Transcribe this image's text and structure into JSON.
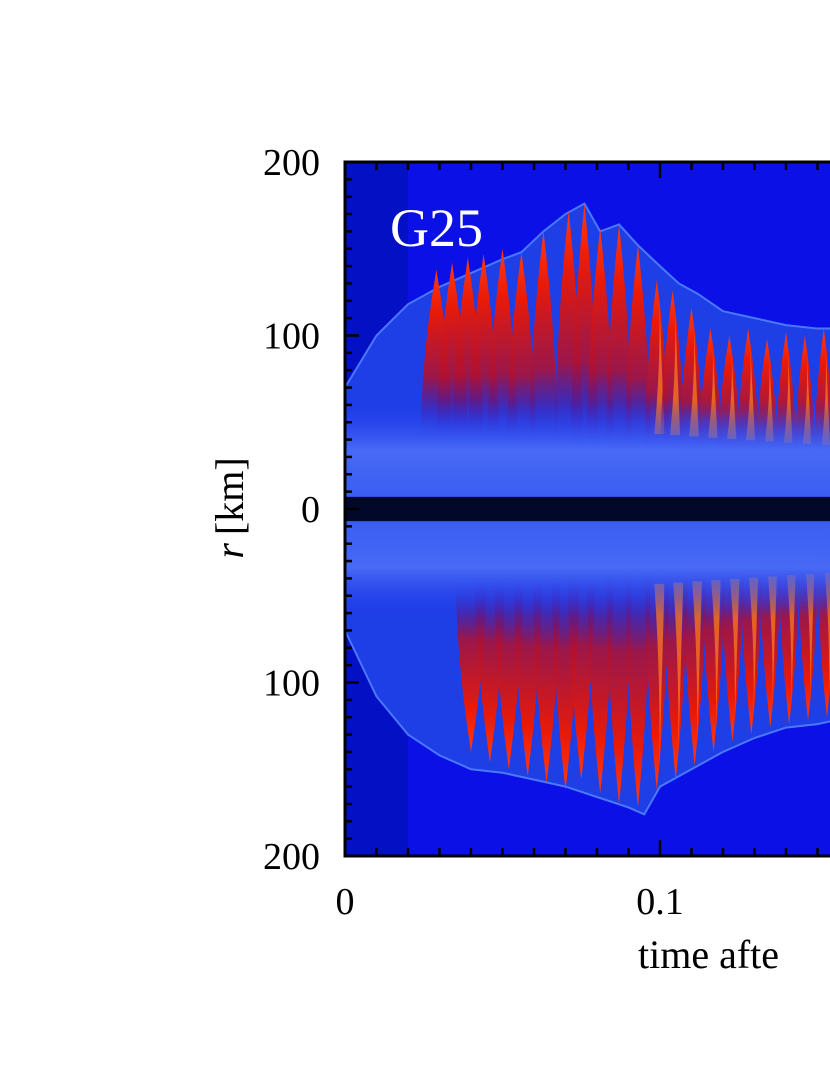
{
  "chart_data": {
    "type": "heatmap",
    "panel_label": "G25",
    "ylabel_var": "r",
    "ylabel_unit": "[km]",
    "xlabel": "time afte",
    "x_ticks": [
      {
        "value": 0,
        "label": "0"
      },
      {
        "value": 0.1,
        "label": "0.1"
      }
    ],
    "y_ticks": [
      {
        "value": 200,
        "label": "200"
      },
      {
        "value": 100,
        "label": "100"
      },
      {
        "value": 0,
        "label": "0"
      },
      {
        "value": -100,
        "label": "100"
      },
      {
        "value": -200,
        "label": "200"
      }
    ],
    "xlim": [
      0,
      0.16
    ],
    "ylim": [
      -200,
      200
    ],
    "colors": {
      "background": "#0a10e6",
      "early_background": "#0410c4",
      "center_band": "#02082a",
      "inner_region": "#3a5cf2",
      "plume_red": "#e81a08",
      "plume_orange": "#ff7a18"
    },
    "shock_radius_upper": [
      [
        0.0,
        70
      ],
      [
        0.01,
        100
      ],
      [
        0.02,
        118
      ],
      [
        0.03,
        128
      ],
      [
        0.04,
        136
      ],
      [
        0.05,
        144
      ],
      [
        0.056,
        148
      ],
      [
        0.063,
        160
      ],
      [
        0.07,
        170
      ],
      [
        0.076,
        176
      ],
      [
        0.081,
        160
      ],
      [
        0.087,
        164
      ],
      [
        0.093,
        152
      ],
      [
        0.1,
        140
      ],
      [
        0.106,
        130
      ],
      [
        0.112,
        124
      ],
      [
        0.12,
        114
      ],
      [
        0.13,
        110
      ],
      [
        0.14,
        106
      ],
      [
        0.15,
        104
      ],
      [
        0.16,
        104
      ]
    ],
    "shock_radius_lower": [
      [
        0.0,
        70
      ],
      [
        0.01,
        108
      ],
      [
        0.02,
        130
      ],
      [
        0.03,
        142
      ],
      [
        0.04,
        150
      ],
      [
        0.05,
        152
      ],
      [
        0.06,
        156
      ],
      [
        0.07,
        160
      ],
      [
        0.08,
        166
      ],
      [
        0.09,
        172
      ],
      [
        0.095,
        176
      ],
      [
        0.1,
        160
      ],
      [
        0.11,
        150
      ],
      [
        0.12,
        140
      ],
      [
        0.13,
        132
      ],
      [
        0.14,
        126
      ],
      [
        0.15,
        124
      ],
      [
        0.16,
        120
      ]
    ],
    "upper_plumes": [
      {
        "t": 0.029,
        "r": 138
      },
      {
        "t": 0.034,
        "r": 142
      },
      {
        "t": 0.039,
        "r": 145
      },
      {
        "t": 0.044,
        "r": 147
      },
      {
        "t": 0.05,
        "r": 150
      },
      {
        "t": 0.056,
        "r": 148
      },
      {
        "t": 0.063,
        "r": 160
      },
      {
        "t": 0.071,
        "r": 172
      },
      {
        "t": 0.076,
        "r": 176
      },
      {
        "t": 0.081,
        "r": 162
      },
      {
        "t": 0.087,
        "r": 164
      },
      {
        "t": 0.093,
        "r": 152
      },
      {
        "t": 0.099,
        "r": 132
      },
      {
        "t": 0.104,
        "r": 126
      },
      {
        "t": 0.11,
        "r": 116
      },
      {
        "t": 0.116,
        "r": 104
      },
      {
        "t": 0.122,
        "r": 100
      },
      {
        "t": 0.128,
        "r": 104
      },
      {
        "t": 0.134,
        "r": 98
      },
      {
        "t": 0.14,
        "r": 102
      },
      {
        "t": 0.146,
        "r": 100
      },
      {
        "t": 0.152,
        "r": 104
      },
      {
        "t": 0.158,
        "r": 102
      }
    ],
    "lower_plumes": [
      {
        "t": 0.04,
        "r": 140
      },
      {
        "t": 0.046,
        "r": 146
      },
      {
        "t": 0.052,
        "r": 150
      },
      {
        "t": 0.058,
        "r": 154
      },
      {
        "t": 0.064,
        "r": 158
      },
      {
        "t": 0.07,
        "r": 162
      },
      {
        "t": 0.075,
        "r": 156
      },
      {
        "t": 0.081,
        "r": 164
      },
      {
        "t": 0.087,
        "r": 170
      },
      {
        "t": 0.093,
        "r": 172
      },
      {
        "t": 0.099,
        "r": 162
      },
      {
        "t": 0.105,
        "r": 156
      },
      {
        "t": 0.111,
        "r": 148
      },
      {
        "t": 0.117,
        "r": 140
      },
      {
        "t": 0.123,
        "r": 134
      },
      {
        "t": 0.129,
        "r": 130
      },
      {
        "t": 0.135,
        "r": 126
      },
      {
        "t": 0.141,
        "r": 124
      },
      {
        "t": 0.147,
        "r": 122
      },
      {
        "t": 0.153,
        "r": 120
      },
      {
        "t": 0.159,
        "r": 118
      }
    ]
  }
}
